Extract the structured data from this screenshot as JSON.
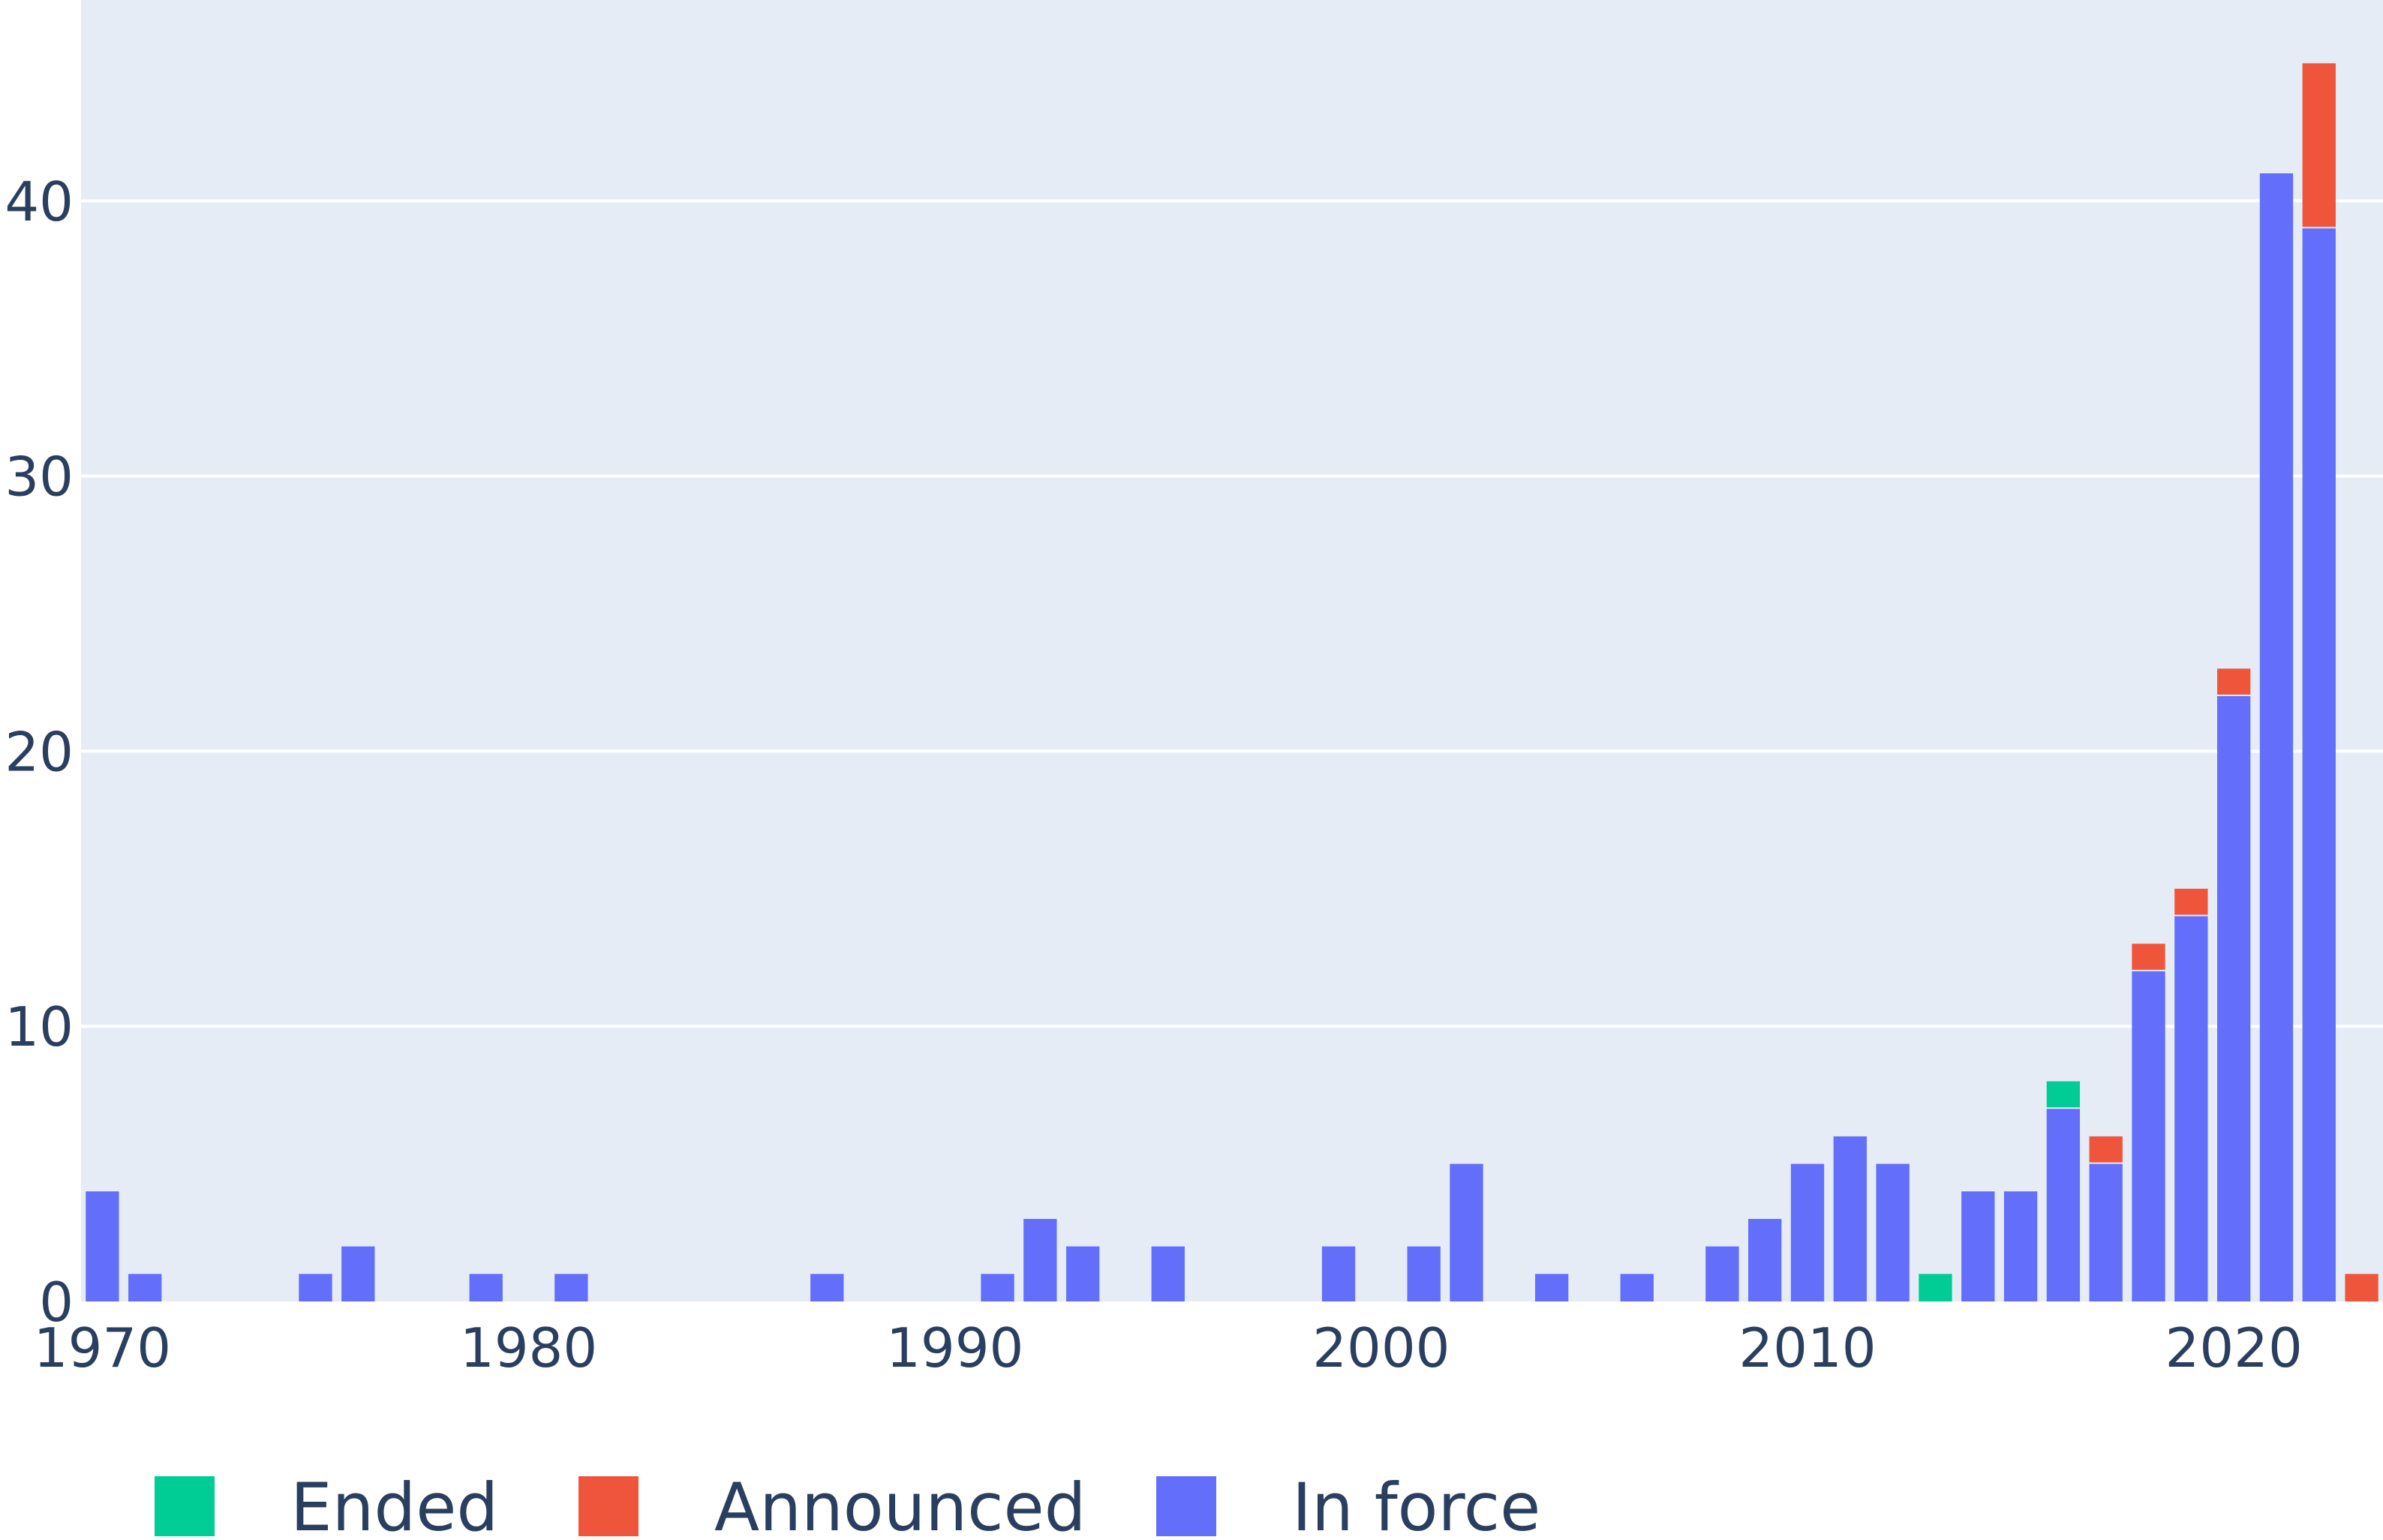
{
  "chart_data": {
    "type": "bar",
    "barmode": "stack",
    "title": "",
    "xlabel": "",
    "ylabel": "",
    "xlim": [
      1969.5,
      2023.5
    ],
    "ylim": [
      0,
      47.3
    ],
    "x_ticks": [
      1970,
      1980,
      1990,
      2000,
      2010,
      2020
    ],
    "y_ticks": [
      0,
      10,
      20,
      30,
      40
    ],
    "grid": true,
    "legend_position": "bottom",
    "x": [
      1970,
      1971,
      1972,
      1973,
      1974,
      1975,
      1976,
      1977,
      1978,
      1979,
      1980,
      1981,
      1982,
      1983,
      1984,
      1985,
      1986,
      1987,
      1988,
      1989,
      1990,
      1991,
      1992,
      1993,
      1994,
      1995,
      1996,
      1997,
      1998,
      1999,
      2000,
      2001,
      2002,
      2003,
      2004,
      2005,
      2006,
      2007,
      2008,
      2009,
      2010,
      2011,
      2012,
      2013,
      2014,
      2015,
      2016,
      2017,
      2018,
      2019,
      2020,
      2021,
      2022,
      2023
    ],
    "series": [
      {
        "name": "In force",
        "color": "#636efa",
        "values": [
          4,
          1,
          0,
          0,
          0,
          1,
          2,
          0,
          0,
          1,
          0,
          1,
          0,
          0,
          0,
          0,
          0,
          1,
          0,
          0,
          0,
          1,
          3,
          2,
          0,
          2,
          0,
          0,
          0,
          2,
          0,
          2,
          5,
          0,
          1,
          0,
          1,
          0,
          2,
          3,
          5,
          6,
          5,
          0,
          4,
          4,
          7,
          5,
          12,
          14,
          22,
          41,
          39,
          0
        ]
      },
      {
        "name": "Announced",
        "color": "#ef553b",
        "values": [
          0,
          0,
          0,
          0,
          0,
          0,
          0,
          0,
          0,
          0,
          0,
          0,
          0,
          0,
          0,
          0,
          0,
          0,
          0,
          0,
          0,
          0,
          0,
          0,
          0,
          0,
          0,
          0,
          0,
          0,
          0,
          0,
          0,
          0,
          0,
          0,
          0,
          0,
          0,
          0,
          0,
          0,
          0,
          0,
          0,
          0,
          0,
          1,
          1,
          1,
          1,
          0,
          6,
          1
        ]
      },
      {
        "name": "Ended",
        "color": "#00cc96",
        "values": [
          0,
          0,
          0,
          0,
          0,
          0,
          0,
          0,
          0,
          0,
          0,
          0,
          0,
          0,
          0,
          0,
          0,
          0,
          0,
          0,
          0,
          0,
          0,
          0,
          0,
          0,
          0,
          0,
          0,
          0,
          0,
          0,
          0,
          0,
          0,
          0,
          0,
          0,
          0,
          0,
          0,
          0,
          0,
          1,
          0,
          0,
          1,
          0,
          0,
          0,
          0,
          0,
          0,
          0
        ]
      }
    ],
    "legend": [
      {
        "name": "Ended",
        "color": "#00cc96"
      },
      {
        "name": "Announced",
        "color": "#ef553b"
      },
      {
        "name": "In force",
        "color": "#636efa"
      }
    ],
    "plot_background": "#e5ecf6",
    "gridline_color": "#ffffff",
    "text_color": "#2a3f5f"
  }
}
